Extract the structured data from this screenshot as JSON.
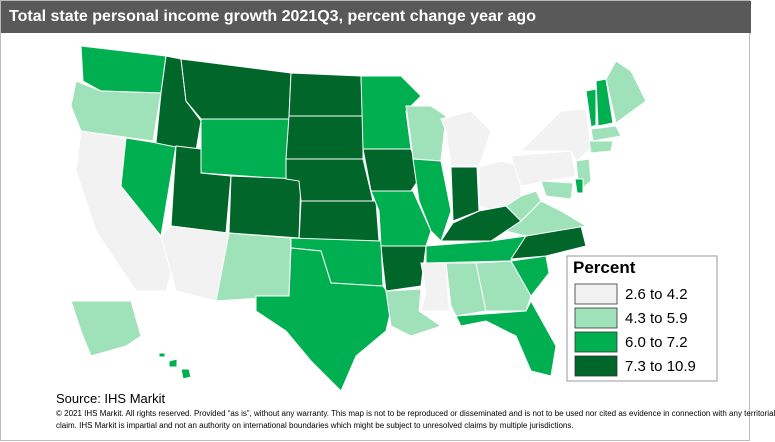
{
  "header": {
    "title": "Total state personal income growth 2021Q3, percent change year ago"
  },
  "legend": {
    "title": "Percent",
    "items": [
      {
        "label": "2.6 to 4.2",
        "color": "#f2f2f2"
      },
      {
        "label": "4.3 to 5.9",
        "color": "#9fe2b9"
      },
      {
        "label": "6.0 to 7.2",
        "color": "#00b050"
      },
      {
        "label": "7.3 to 10.9",
        "color": "#006629"
      }
    ]
  },
  "footer": {
    "source": "Source: IHS Markit",
    "notice": [
      "© 2021 IHS Markit. All rights reserved. Provided “as is”, without any warranty.  This map is not to be reproduced or disseminated and is not to be used nor cited as evidence in connection with any territorial",
      "claim. IHS Markit is impartial and not an authority on international boundaries which might be subject to unresolved claims by multiple jurisdictions."
    ]
  }
}
